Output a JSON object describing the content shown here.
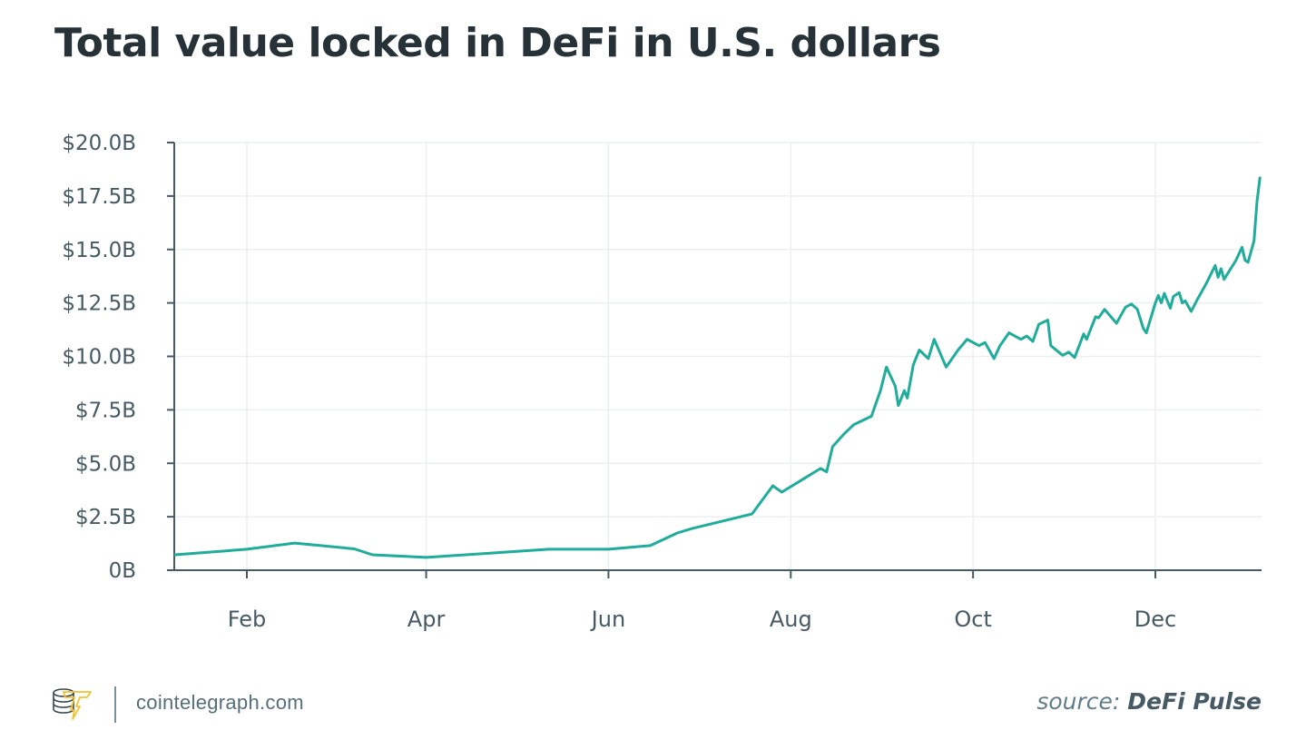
{
  "header": {
    "title": "Total value locked in DeFi in U.S. dollars"
  },
  "footer": {
    "site": "cointelegraph.com",
    "source_label": "source:",
    "source_name": "DeFi Pulse",
    "logo_icon": "cointelegraph-logo-icon"
  },
  "colors": {
    "line": "#1fac9a",
    "axis": "#455a64",
    "grid": "#eceff1",
    "text": "#263238",
    "logo_accent": "#f2c230"
  },
  "chart_data": {
    "type": "line",
    "title": "Total value locked in DeFi in U.S. dollars",
    "xlabel": "",
    "ylabel": "",
    "ylim": [
      0,
      20
    ],
    "y_unit": "billion USD",
    "grid": true,
    "y_ticks": [
      {
        "value": 0,
        "label": "0B"
      },
      {
        "value": 2.5,
        "label": "$2.5B"
      },
      {
        "value": 5,
        "label": "$5.0B"
      },
      {
        "value": 7.5,
        "label": "$7.5B"
      },
      {
        "value": 10,
        "label": "$10.0B"
      },
      {
        "value": 12.5,
        "label": "$12.5B"
      },
      {
        "value": 15,
        "label": "$15.0B"
      },
      {
        "value": 17.5,
        "label": "$17.5B"
      },
      {
        "value": 20,
        "label": "$20.0B"
      }
    ],
    "x_range_days": [
      0,
      365
    ],
    "x_ticks": [
      {
        "day": 31,
        "label": "Feb"
      },
      {
        "day": 91,
        "label": "Apr"
      },
      {
        "day": 152,
        "label": "Jun"
      },
      {
        "day": 213,
        "label": "Aug"
      },
      {
        "day": 274,
        "label": "Oct"
      },
      {
        "day": 335,
        "label": "Dec"
      }
    ],
    "series": [
      {
        "name": "Total value locked",
        "points_day_value": [
          [
            7,
            0.72
          ],
          [
            31,
            0.98
          ],
          [
            47,
            1.27
          ],
          [
            67,
            1.0
          ],
          [
            73,
            0.72
          ],
          [
            91,
            0.6
          ],
          [
            132,
            0.98
          ],
          [
            152,
            0.98
          ],
          [
            166,
            1.15
          ],
          [
            175,
            1.74
          ],
          [
            180,
            1.95
          ],
          [
            200,
            2.63
          ],
          [
            207,
            3.95
          ],
          [
            210,
            3.65
          ],
          [
            223,
            4.76
          ],
          [
            225,
            4.6
          ],
          [
            227,
            5.78
          ],
          [
            231,
            6.4
          ],
          [
            234,
            6.8
          ],
          [
            240,
            7.2
          ],
          [
            243,
            8.4
          ],
          [
            245,
            9.5
          ],
          [
            248,
            8.6
          ],
          [
            249,
            7.7
          ],
          [
            251,
            8.4
          ],
          [
            252,
            8.05
          ],
          [
            254,
            9.6
          ],
          [
            256,
            10.3
          ],
          [
            259,
            9.9
          ],
          [
            261,
            10.8
          ],
          [
            265,
            9.5
          ],
          [
            269,
            10.3
          ],
          [
            272,
            10.8
          ],
          [
            276,
            10.5
          ],
          [
            278,
            10.65
          ],
          [
            281,
            9.9
          ],
          [
            283,
            10.5
          ],
          [
            286,
            11.1
          ],
          [
            290,
            10.8
          ],
          [
            292,
            10.95
          ],
          [
            294,
            10.7
          ],
          [
            296,
            11.5
          ],
          [
            299,
            11.7
          ],
          [
            300,
            10.5
          ],
          [
            304,
            10.05
          ],
          [
            306,
            10.2
          ],
          [
            308,
            9.95
          ],
          [
            311,
            11.05
          ],
          [
            312,
            10.8
          ],
          [
            315,
            11.85
          ],
          [
            316,
            11.8
          ],
          [
            318,
            12.2
          ],
          [
            322,
            11.55
          ],
          [
            325,
            12.3
          ],
          [
            327,
            12.45
          ],
          [
            329,
            12.2
          ],
          [
            331,
            11.3
          ],
          [
            332,
            11.1
          ],
          [
            335,
            12.5
          ],
          [
            336,
            12.85
          ],
          [
            337,
            12.5
          ],
          [
            338,
            12.95
          ],
          [
            340,
            12.25
          ],
          [
            341,
            12.8
          ],
          [
            343,
            12.98
          ],
          [
            344,
            12.5
          ],
          [
            345,
            12.6
          ],
          [
            347,
            12.1
          ],
          [
            349,
            12.65
          ],
          [
            352,
            13.4
          ],
          [
            355,
            14.25
          ],
          [
            356,
            13.7
          ],
          [
            357,
            14.1
          ],
          [
            358,
            13.6
          ],
          [
            362,
            14.5
          ],
          [
            364,
            15.1
          ],
          [
            365,
            14.5
          ],
          [
            366,
            14.4
          ],
          [
            368,
            15.4
          ],
          [
            369,
            17.25
          ],
          [
            370,
            18.35
          ]
        ]
      }
    ]
  }
}
